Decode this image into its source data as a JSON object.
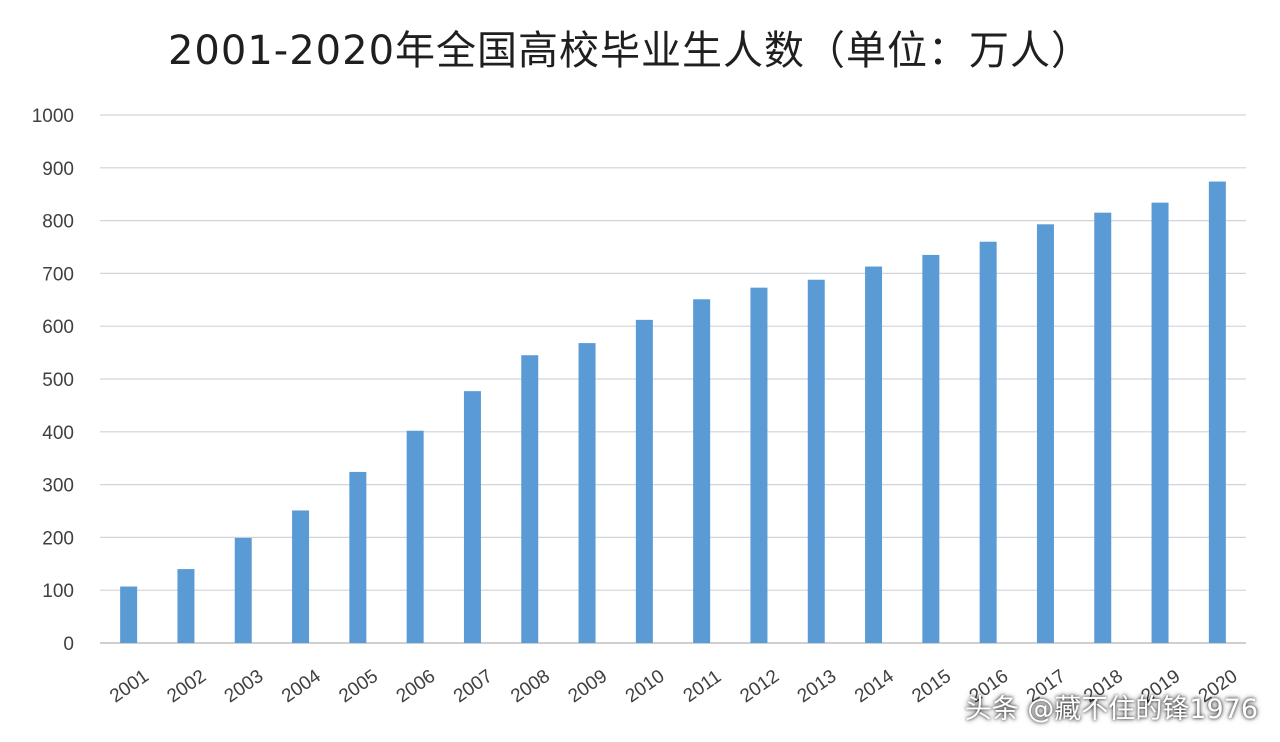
{
  "chart_data": {
    "type": "bar",
    "title": "2001-2020年全国高校毕业生人数（单位：万人）",
    "xlabel": "",
    "ylabel": "",
    "categories": [
      "2001",
      "2002",
      "2003",
      "2004",
      "2005",
      "2006",
      "2007",
      "2008",
      "2009",
      "2010",
      "2011",
      "2012",
      "2013",
      "2014",
      "2015",
      "2016",
      "2017",
      "2018",
      "2019",
      "2020"
    ],
    "values": [
      107,
      140,
      199,
      251,
      324,
      402,
      477,
      545,
      568,
      612,
      651,
      673,
      688,
      713,
      735,
      760,
      793,
      815,
      834,
      874
    ],
    "yticks": [
      0,
      100,
      200,
      300,
      400,
      500,
      600,
      700,
      800,
      900,
      1000
    ],
    "ylim": [
      0,
      1000
    ],
    "grid": true,
    "legend": false,
    "bar_color": "#5b9bd5",
    "watermark": "头条 @藏不住的锋1976"
  }
}
